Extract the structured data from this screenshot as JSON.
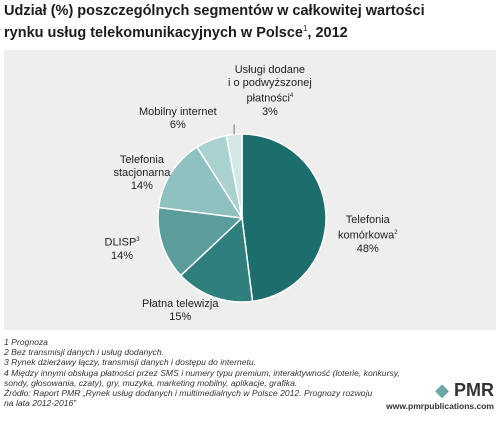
{
  "title": {
    "line1": "Udział (%) poszczególnych segmentów w całkowitej wartości",
    "line2_main": "rynku usług telekomunikacyjnych w Polsce",
    "line2_sup": "1",
    "line2_tail": ", 2012"
  },
  "chart_data": {
    "type": "pie",
    "title": "Udział (%) poszczególnych segmentów w całkowitej wartości rynku usług telekomunikacyjnych w Polsce, 2012",
    "unit": "%",
    "slices": [
      {
        "label_lines": [
          "Telefonia",
          "komórkowa"
        ],
        "sup": "2",
        "value": 48,
        "value_label": "48%",
        "color": "#1c6e6c"
      },
      {
        "label_lines": [
          "Płatna telewizja"
        ],
        "sup": "",
        "value": 15,
        "value_label": "15%",
        "color": "#2f807d"
      },
      {
        "label_lines": [
          "DLISP"
        ],
        "sup": "3",
        "value": 14,
        "value_label": "14%",
        "color": "#5a9d9b"
      },
      {
        "label_lines": [
          "Telefonia",
          "stacjonarna"
        ],
        "sup": "",
        "value": 14,
        "value_label": "14%",
        "color": "#8ec1bf"
      },
      {
        "label_lines": [
          "Mobilny internet"
        ],
        "sup": "",
        "value": 6,
        "value_label": "6%",
        "color": "#a9d1cf"
      },
      {
        "label_lines": [
          "Usługi dodane",
          "i o podwyższonej",
          "płatności"
        ],
        "sup": "4",
        "value": 3,
        "value_label": "3%",
        "color": "#d3e8e7"
      }
    ]
  },
  "footnotes": [
    "1 Prognoza",
    "2 Bez transmisji danych i usług dodanych.",
    "3 Rynek dzierżawy łączy, transmisji danych i dostępu do internetu.",
    "4 Między innymi obsługa płatności przez SMS i numery typu premium, interaktywność (loterie, konkursy,",
    "sondy, głosowania, czaty), gry, muzyka, marketing mobilny, aplikacje, grafika.",
    "Źródło: Raport PMR „Rynek usług dodanych i multimedialnych w Polsce 2012. Prognozy rozwoju",
    "na lata 2012-2016”"
  ],
  "brand": {
    "logo": "PMR",
    "url": "www.pmrpublications.com"
  }
}
